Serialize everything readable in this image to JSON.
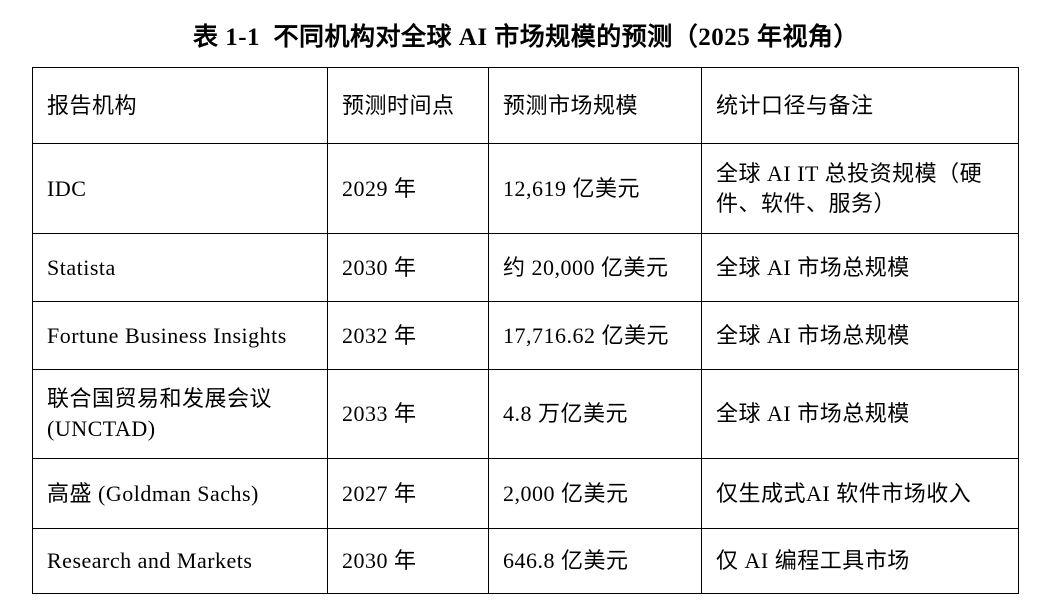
{
  "page": {
    "title": "表 1-1  不同机构对全球 AI 市场规模的预测（2025 年视角）"
  },
  "table": {
    "headers": [
      "报告机构",
      "预测时间点",
      "预测市场规模",
      "统计口径与备注"
    ],
    "rows": [
      {
        "org": "IDC",
        "time": "2029 年",
        "size": "12,619 亿美元",
        "note": "全球 AI IT 总投资规模（硬件、软件、服务）"
      },
      {
        "org": "Statista",
        "time": "2030 年",
        "size": "约 20,000 亿美元",
        "note": "全球 AI 市场总规模"
      },
      {
        "org": "Fortune Business Insights",
        "time": "2032 年",
        "size": "17,716.62 亿美元",
        "note": "全球 AI 市场总规模"
      },
      {
        "org": "联合国贸易和发展会议(UNCTAD)",
        "time": "2033 年",
        "size": "4.8 万亿美元",
        "note": "全球 AI 市场总规模"
      },
      {
        "org": "高盛 (Goldman Sachs)",
        "time": "2027 年",
        "size": "2,000 亿美元",
        "note": "仅生成式AI 软件市场收入"
      },
      {
        "org": "Research and Markets",
        "time": "2030 年",
        "size": "646.8 亿美元",
        "note": "仅 AI 编程工具市场"
      }
    ]
  }
}
